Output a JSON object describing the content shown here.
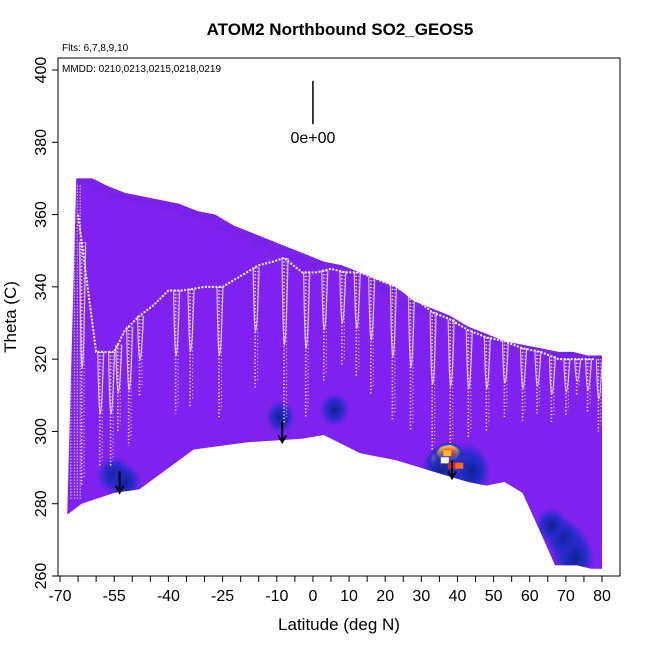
{
  "chart_data": {
    "type": "heatmap",
    "title": "ATOM2 Northbound SO2_GEOS5",
    "xlabel": "Latitude (deg N)",
    "ylabel": "Theta (C)",
    "xlim": [
      -70,
      80
    ],
    "ylim": [
      260,
      400
    ],
    "xticks": [
      -70,
      -55,
      -40,
      -25,
      -10,
      0,
      10,
      20,
      30,
      40,
      50,
      60,
      70,
      80
    ],
    "xtick_labels": [
      "-70",
      "-55",
      "-40",
      "-25",
      "-10",
      "0",
      "10",
      "20",
      "30",
      "40",
      "50",
      "60",
      "70",
      "80"
    ],
    "xticks_minor_step": 5,
    "yticks": [
      260,
      280,
      300,
      320,
      340,
      360,
      380,
      400
    ],
    "ytick_labels": [
      "260",
      "280",
      "300",
      "320",
      "340",
      "360",
      "380",
      "400"
    ],
    "flights_note": "Flts: 6,7,8,9,10",
    "dates_note": "MMDD: 0210,0213,0215,0218,0219",
    "color_scale_label": "0e+00",
    "background_color": "#7f22f0",
    "colormap": [
      "#7f22f0",
      "#6a1fe0",
      "#3a2ad0",
      "#1e2cc8",
      "#102090",
      "#ffffff",
      "#ffd23a",
      "#ff6a1a",
      "#e81c1c"
    ],
    "top_envelope": [
      [
        -65.5,
        370
      ],
      [
        -61,
        370
      ],
      [
        -57,
        368
      ],
      [
        -52,
        366
      ],
      [
        -47,
        365
      ],
      [
        -42,
        364
      ],
      [
        -37,
        363
      ],
      [
        -32,
        361
      ],
      [
        -27,
        360
      ],
      [
        -22,
        357
      ],
      [
        -17,
        355
      ],
      [
        -12,
        353
      ],
      [
        -7,
        351
      ],
      [
        -2,
        349
      ],
      [
        3,
        347
      ],
      [
        8,
        346
      ],
      [
        13,
        344
      ],
      [
        18,
        342
      ],
      [
        23,
        340
      ],
      [
        28,
        336
      ],
      [
        33,
        334
      ],
      [
        38,
        332
      ],
      [
        43,
        329
      ],
      [
        48,
        327
      ],
      [
        53,
        325
      ],
      [
        58,
        324
      ],
      [
        63,
        323
      ],
      [
        68,
        322
      ],
      [
        72,
        322
      ],
      [
        76,
        321
      ],
      [
        80,
        321
      ]
    ],
    "bottom_envelope": [
      [
        -68,
        277
      ],
      [
        -64,
        280
      ],
      [
        -55,
        283
      ],
      [
        -48,
        284
      ],
      [
        -33,
        295
      ],
      [
        -18,
        297
      ],
      [
        -3,
        298
      ],
      [
        3,
        299
      ],
      [
        13,
        294
      ],
      [
        23,
        292
      ],
      [
        33,
        289
      ],
      [
        43,
        286
      ],
      [
        48,
        285
      ],
      [
        53,
        286
      ],
      [
        58,
        283
      ],
      [
        63,
        272
      ],
      [
        67,
        263
      ],
      [
        73,
        263
      ],
      [
        77,
        262
      ],
      [
        80,
        262
      ]
    ],
    "profile_minima": [
      [
        -64,
        285
      ],
      [
        -59,
        290
      ],
      [
        -56,
        290
      ],
      [
        -54,
        300
      ],
      [
        -51,
        296
      ],
      [
        -48,
        310
      ],
      [
        -38,
        305
      ],
      [
        -34,
        307
      ],
      [
        -26,
        304
      ],
      [
        -16,
        312
      ],
      [
        -8,
        302
      ],
      [
        -2,
        304
      ],
      [
        3,
        314
      ],
      [
        8,
        318
      ],
      [
        12,
        315
      ],
      [
        16,
        310
      ],
      [
        22,
        303
      ],
      [
        27,
        300
      ],
      [
        33,
        295
      ],
      [
        38,
        296
      ],
      [
        43,
        298
      ],
      [
        48,
        300
      ],
      [
        53,
        304
      ],
      [
        58,
        303
      ],
      [
        62,
        305
      ],
      [
        66,
        302
      ],
      [
        70,
        304
      ],
      [
        73,
        310
      ],
      [
        76,
        305
      ],
      [
        79,
        300
      ]
    ],
    "profile_upper": [
      [
        -65,
        360
      ],
      [
        -60,
        322
      ],
      [
        -55,
        322
      ],
      [
        -52,
        328
      ],
      [
        -48,
        332
      ],
      [
        -44,
        335
      ],
      [
        -40,
        339
      ],
      [
        -36,
        339
      ],
      [
        -30,
        340
      ],
      [
        -25,
        340
      ],
      [
        -20,
        343
      ],
      [
        -15,
        346
      ],
      [
        -11,
        347
      ],
      [
        -8,
        348
      ],
      [
        -3,
        344
      ],
      [
        1,
        344
      ],
      [
        5,
        345
      ],
      [
        9,
        344
      ],
      [
        13,
        344
      ],
      [
        18,
        342
      ],
      [
        23,
        340
      ],
      [
        28,
        337
      ],
      [
        33,
        333
      ],
      [
        38,
        331
      ],
      [
        43,
        328
      ],
      [
        48,
        326
      ],
      [
        53,
        325
      ],
      [
        58,
        323
      ],
      [
        63,
        322
      ],
      [
        68,
        320
      ],
      [
        73,
        320
      ],
      [
        78,
        320
      ]
    ],
    "hotspots": [
      {
        "lat": 36.5,
        "theta": 292,
        "level": 0.9
      },
      {
        "lat": 38.5,
        "theta": 290,
        "level": 1.0
      },
      {
        "lat": 40.5,
        "theta": 291,
        "level": 0.8
      },
      {
        "lat": 37.5,
        "theta": 294,
        "level": 0.6
      },
      {
        "lat": 42.5,
        "theta": 290,
        "level": 0.5
      },
      {
        "lat": 35.5,
        "theta": 289,
        "level": 0.45
      },
      {
        "lat": 44,
        "theta": 289,
        "level": 0.35
      },
      {
        "lat": 71,
        "theta": 268,
        "level": 0.45
      },
      {
        "lat": 72.5,
        "theta": 265,
        "level": 0.4
      },
      {
        "lat": 69,
        "theta": 271,
        "level": 0.3
      },
      {
        "lat": 66,
        "theta": 274,
        "level": 0.25
      },
      {
        "lat": -55,
        "theta": 288,
        "level": 0.3
      },
      {
        "lat": -52,
        "theta": 286,
        "level": 0.25
      },
      {
        "lat": -9,
        "theta": 304,
        "level": 0.2
      },
      {
        "lat": 6,
        "theta": 306,
        "level": 0.2
      }
    ],
    "arrows": [
      {
        "lat": -53.5,
        "from": 289,
        "to": 283
      },
      {
        "lat": -8.5,
        "from": 303,
        "to": 297
      },
      {
        "lat": 38.5,
        "from": 292,
        "to": 287
      }
    ],
    "scale_bar": {
      "lat": 0,
      "from": 397,
      "to": 385
    }
  }
}
